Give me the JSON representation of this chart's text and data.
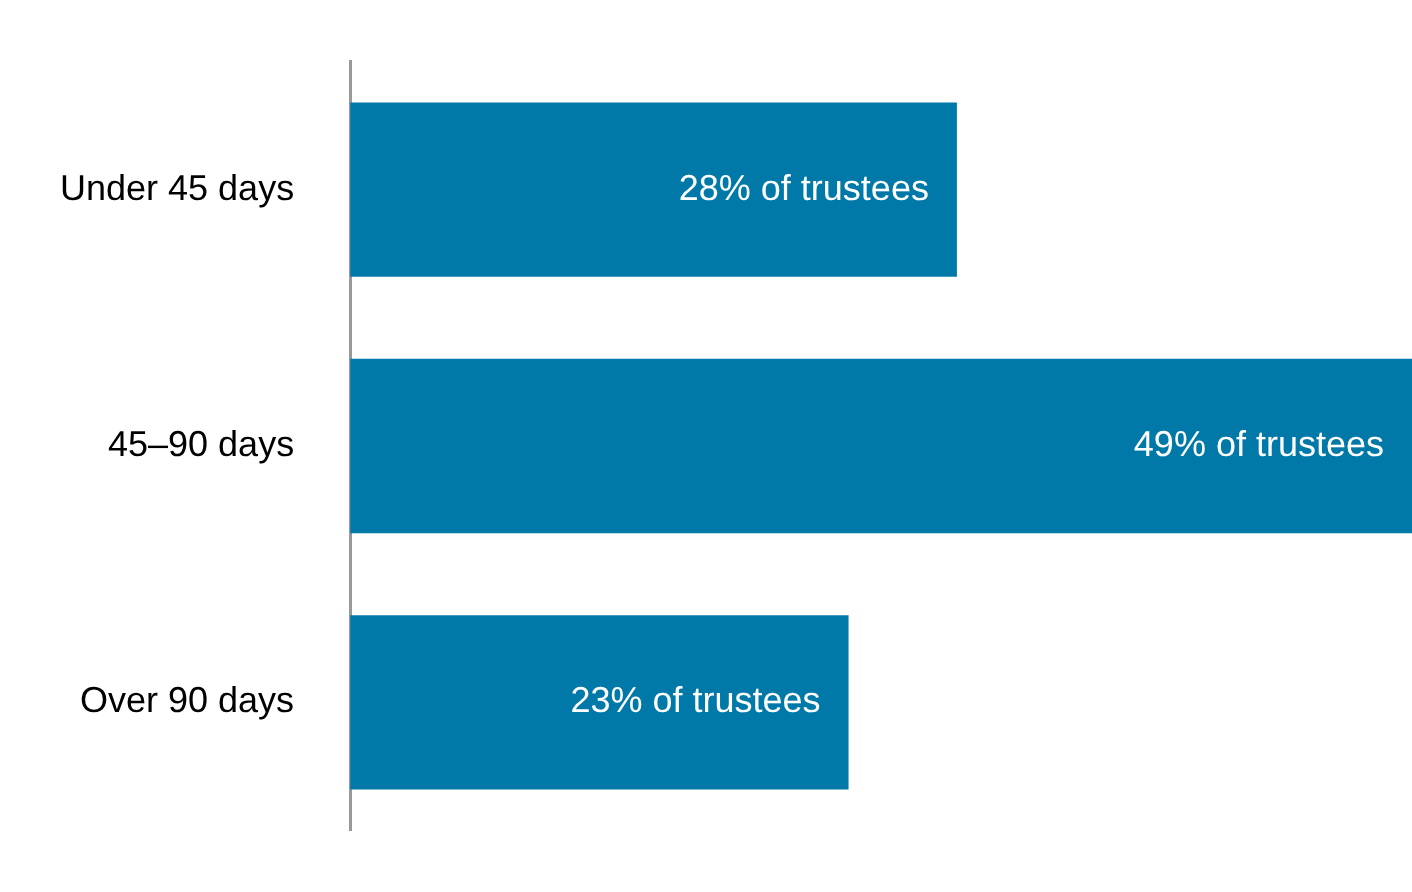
{
  "chart_data": {
    "type": "bar",
    "orientation": "horizontal",
    "categories": [
      "Under 45 days",
      "45–90 days",
      "Over 90 days"
    ],
    "values": [
      28,
      49,
      23
    ],
    "value_labels": [
      "28% of trustees",
      "49% of trustees",
      "23% of trustees"
    ],
    "color": "#0079a8",
    "legend": false
  }
}
